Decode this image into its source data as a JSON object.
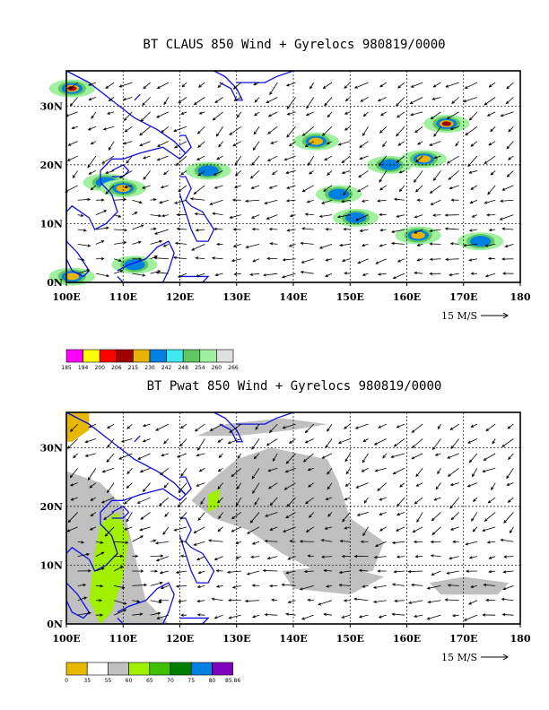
{
  "chart_data": [
    {
      "type": "heatmap",
      "title": "BT CLAUS 850 Wind + Gyrelocs 980819/0000",
      "x_ticks": [
        "100E",
        "110E",
        "120E",
        "130E",
        "140E",
        "150E",
        "160E",
        "170E",
        "180"
      ],
      "y_ticks": [
        "0N",
        "10N",
        "20N",
        "30N"
      ],
      "xlim": [
        100,
        180
      ],
      "ylim": [
        0,
        36
      ],
      "grid": "dashed",
      "vector_scale_label": "15 M/S",
      "colorbar": {
        "labels": [
          "185",
          "194",
          "200",
          "206",
          "215",
          "230",
          "242",
          "248",
          "254",
          "260",
          "266"
        ],
        "colors": [
          "#ff00ff",
          "#ffff00",
          "#ff0000",
          "#a00000",
          "#e8b400",
          "#0080e0",
          "#40e8f0",
          "#60c860",
          "#a0f0a0",
          "#e0e0e0"
        ]
      },
      "cloud_clusters": [
        {
          "lon": 101,
          "lat": 33,
          "level": 5
        },
        {
          "lon": 107,
          "lat": 17,
          "level": 3
        },
        {
          "lon": 110,
          "lat": 16,
          "level": 4
        },
        {
          "lon": 112,
          "lat": 3,
          "level": 3
        },
        {
          "lon": 101,
          "lat": 1,
          "level": 4
        },
        {
          "lon": 125,
          "lat": 19,
          "level": 3
        },
        {
          "lon": 144,
          "lat": 24,
          "level": 4
        },
        {
          "lon": 148,
          "lat": 15,
          "level": 3
        },
        {
          "lon": 151,
          "lat": 11,
          "level": 3
        },
        {
          "lon": 157,
          "lat": 20,
          "level": 3
        },
        {
          "lon": 163,
          "lat": 21,
          "level": 4
        },
        {
          "lon": 162,
          "lat": 8,
          "level": 4
        },
        {
          "lon": 173,
          "lat": 7,
          "level": 3
        },
        {
          "lon": 167,
          "lat": 27,
          "level": 6
        }
      ]
    },
    {
      "type": "heatmap",
      "title": "BT Pwat 850 Wind + Gyrelocs 980819/0000",
      "x_ticks": [
        "100E",
        "110E",
        "120E",
        "130E",
        "140E",
        "150E",
        "160E",
        "170E",
        "180"
      ],
      "y_ticks": [
        "0N",
        "10N",
        "20N",
        "30N"
      ],
      "xlim": [
        100,
        180
      ],
      "ylim": [
        0,
        36
      ],
      "grid": "dashed",
      "vector_scale_label": "15 M/S",
      "colorbar": {
        "labels": [
          "0",
          "35",
          "55",
          "60",
          "65",
          "70",
          "75",
          "80",
          "85.86"
        ],
        "colors": [
          "#e8b800",
          "#ffffff",
          "#c0c0c0",
          "#a0f000",
          "#40c000",
          "#008000",
          "#0080e0",
          "#8000c0"
        ]
      }
    }
  ]
}
